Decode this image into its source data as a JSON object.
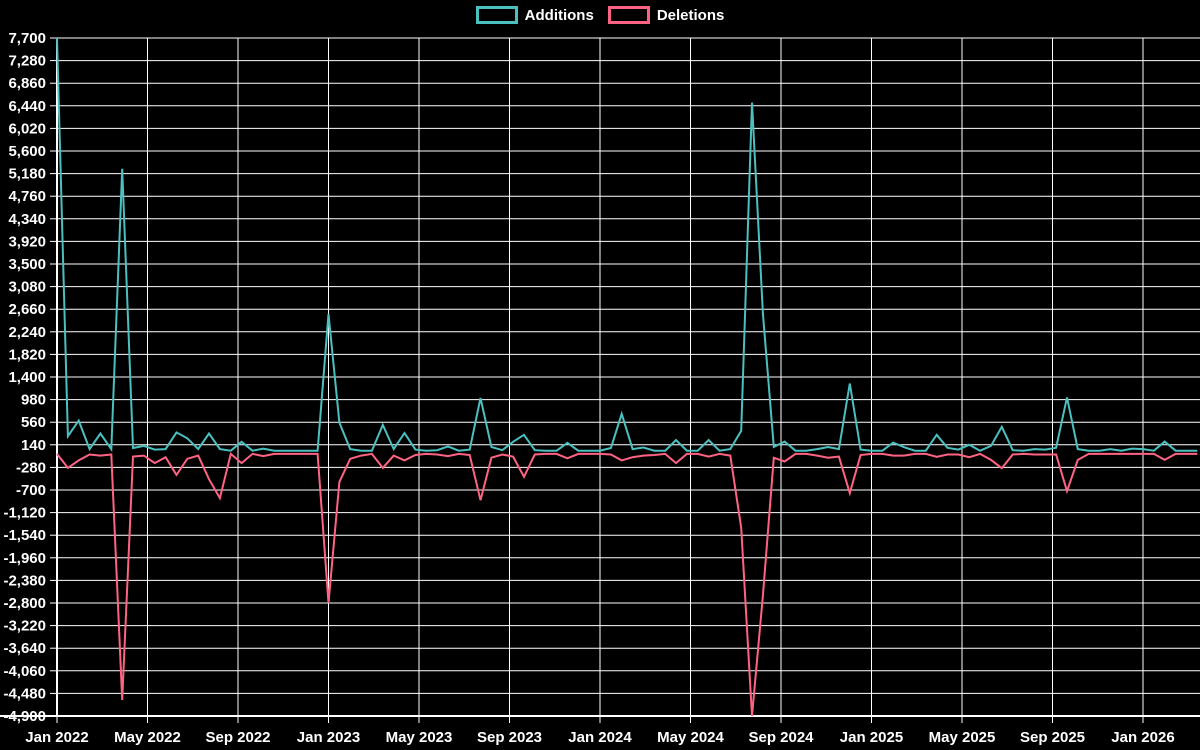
{
  "legend": [
    {
      "label": "Additions",
      "color": "#4bc0c0"
    },
    {
      "label": "Deletions",
      "color": "#ff6384"
    }
  ],
  "chart_data": {
    "type": "line",
    "title": "",
    "background_color": "#000000",
    "grid": true,
    "grid_color": "#ffffff",
    "axis_color": "#ffffff",
    "text_color": "#ffffff",
    "legend_position": "top-center",
    "x_axis": {
      "unit": "months since Jan 2022",
      "tick_step_months": 4,
      "tick_labels": [
        "Jan 2022",
        "May 2022",
        "Sep 2022",
        "Jan 2023",
        "May 2023",
        "Sep 2023",
        "Jan 2024",
        "May 2024",
        "Sep 2024",
        "Jan 2025",
        "May 2025",
        "Sep 2025",
        "Jan 2026"
      ]
    },
    "y_axis": {
      "min": -4900,
      "max": 7700,
      "tick_step": 420,
      "tick_labels": [
        "7,700",
        "7,280",
        "6,860",
        "6,440",
        "6,020",
        "5,600",
        "5,180",
        "4,760",
        "4,340",
        "3,920",
        "3,500",
        "3,080",
        "2,660",
        "2,240",
        "1,820",
        "1,400",
        "980",
        "560",
        "140",
        "-280",
        "-700",
        "-1,120",
        "-1,540",
        "-1,960",
        "-2,380",
        "-2,800",
        "-3,220",
        "-3,640",
        "-4,060",
        "-4,480",
        "-4,900"
      ]
    },
    "sampling": {
      "x_start_months": 0,
      "x_step_months": 0.48,
      "point_count": 106,
      "note": "values estimated from gridlines; biweekly cadence"
    },
    "series": [
      {
        "name": "Additions",
        "color": "#4bc0c0",
        "values": [
          7700,
          300,
          590,
          60,
          350,
          60,
          5270,
          80,
          120,
          50,
          60,
          370,
          260,
          60,
          350,
          60,
          30,
          195,
          30,
          70,
          30,
          30,
          30,
          30,
          30,
          2570,
          550,
          60,
          30,
          30,
          510,
          60,
          360,
          50,
          30,
          40,
          110,
          30,
          50,
          1010,
          100,
          40,
          195,
          325,
          40,
          30,
          30,
          175,
          30,
          30,
          30,
          80,
          715,
          60,
          90,
          30,
          30,
          230,
          30,
          30,
          230,
          30,
          60,
          400,
          6500,
          2580,
          100,
          200,
          30,
          30,
          60,
          100,
          60,
          1280,
          50,
          30,
          30,
          180,
          95,
          30,
          30,
          325,
          85,
          50,
          140,
          30,
          120,
          475,
          40,
          30,
          60,
          50,
          85,
          1020,
          60,
          30,
          30,
          60,
          30,
          70,
          60,
          30,
          200,
          30,
          30,
          30
        ]
      },
      {
        "name": "Deletions",
        "color": "#ff6384",
        "values": [
          -30,
          -290,
          -150,
          -40,
          -60,
          -40,
          -4600,
          -80,
          -60,
          -200,
          -90,
          -420,
          -120,
          -60,
          -500,
          -850,
          -30,
          -200,
          -30,
          -70,
          -30,
          -30,
          -30,
          -30,
          -30,
          -2800,
          -550,
          -120,
          -60,
          -30,
          -290,
          -60,
          -150,
          -50,
          -30,
          -40,
          -70,
          -30,
          -50,
          -890,
          -100,
          -40,
          -80,
          -455,
          -40,
          -30,
          -30,
          -110,
          -30,
          -30,
          -30,
          -40,
          -150,
          -90,
          -60,
          -50,
          -30,
          -200,
          -30,
          -30,
          -80,
          -30,
          -60,
          -1400,
          -4900,
          -2660,
          -100,
          -170,
          -30,
          -30,
          -60,
          -100,
          -80,
          -760,
          -50,
          -30,
          -30,
          -60,
          -60,
          -30,
          -30,
          -85,
          -40,
          -40,
          -90,
          -30,
          -140,
          -295,
          -40,
          -30,
          -40,
          -40,
          -40,
          -720,
          -140,
          -30,
          -30,
          -30,
          -30,
          -30,
          -30,
          -30,
          -140,
          -30,
          -30,
          -30
        ]
      }
    ]
  }
}
